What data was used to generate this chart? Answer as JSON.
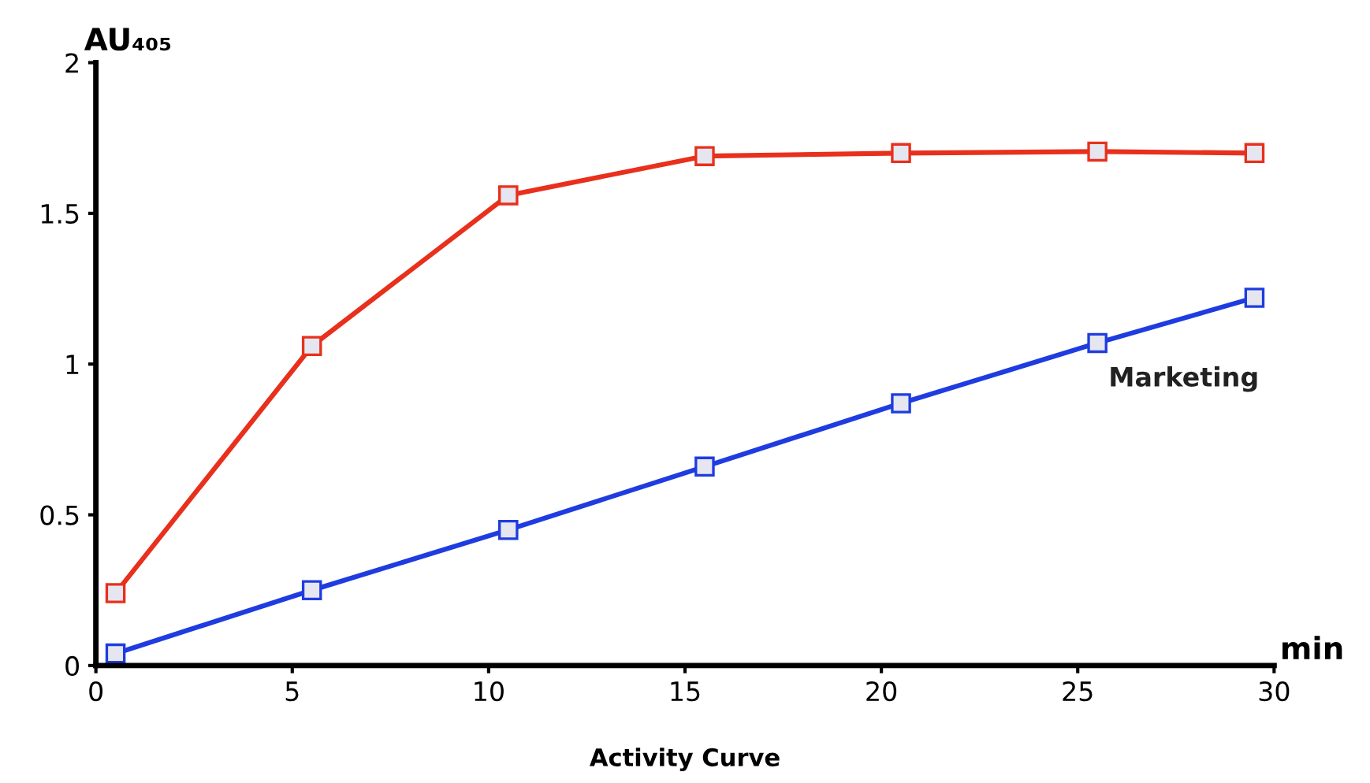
{
  "chart_data": {
    "type": "line",
    "xlabel": "min",
    "ylabel": "AU₄₀₅",
    "annotations": [
      "Activity Curve"
    ],
    "xlim": [
      0,
      30
    ],
    "xticks": [
      0,
      5,
      10,
      15,
      20,
      25,
      30
    ],
    "ylim": [
      0,
      2
    ],
    "yticks": [
      0,
      0.5,
      1,
      1.5,
      2
    ],
    "grid": false,
    "marker": "square",
    "line_style": "solid",
    "series": [
      {
        "color": "#e8301c",
        "x": [
          0.5,
          5.5,
          10.5,
          15.5,
          20.5,
          25.5,
          29.5
        ],
        "values": [
          0.24,
          1.06,
          1.56,
          1.69,
          1.7,
          1.705,
          1.7
        ]
      },
      {
        "name": "Marketing",
        "color": "#1f3ce0",
        "x": [
          0.5,
          5.5,
          10.5,
          15.5,
          20.5,
          25.5,
          29.5
        ],
        "values": [
          0.04,
          0.25,
          0.45,
          0.66,
          0.87,
          1.07,
          1.22
        ]
      }
    ]
  }
}
